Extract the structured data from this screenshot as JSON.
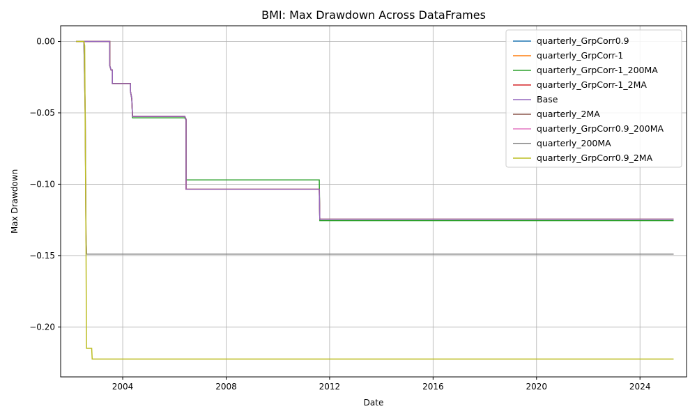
{
  "chart_data": {
    "type": "line",
    "title": "BMI: Max Drawdown Across DataFrames",
    "xlabel": "Date",
    "ylabel": "Max Drawdown",
    "x_ticks": [
      "2004",
      "2008",
      "2012",
      "2016",
      "2020",
      "2024"
    ],
    "y_ticks": [
      "0.00",
      "−0.05",
      "−0.10",
      "−0.15",
      "−0.20"
    ],
    "y_tick_values": [
      0,
      -0.05,
      -0.1,
      -0.15,
      -0.2
    ],
    "x_tick_values": [
      2004,
      2008,
      2012,
      2016,
      2020,
      2024
    ],
    "xlim": [
      2001.6,
      2025.8
    ],
    "ylim": [
      -0.235,
      0.011
    ],
    "grid": true,
    "legend_position": "top-right",
    "series": [
      {
        "name": "quarterly_GrpCorr0.9",
        "color": "#1f77b4",
        "points": [
          [
            2002.2,
            0
          ],
          [
            2003.5,
            0
          ],
          [
            2003.5,
            -0.017
          ],
          [
            2003.55,
            -0.02
          ],
          [
            2003.6,
            -0.02
          ],
          [
            2003.6,
            -0.0295
          ],
          [
            2004.3,
            -0.0295
          ],
          [
            2004.3,
            -0.035
          ],
          [
            2004.35,
            -0.04
          ],
          [
            2004.38,
            -0.0525
          ],
          [
            2006.4,
            -0.0525
          ],
          [
            2006.45,
            -0.0545
          ],
          [
            2006.45,
            -0.1035
          ],
          [
            2011.6,
            -0.1035
          ],
          [
            2011.62,
            -0.1245
          ],
          [
            2025.3,
            -0.1245
          ]
        ]
      },
      {
        "name": "quarterly_GrpCorr-1",
        "color": "#ff7f0e",
        "points": [
          [
            2002.2,
            0
          ],
          [
            2003.5,
            0
          ],
          [
            2003.5,
            -0.017
          ],
          [
            2003.55,
            -0.02
          ],
          [
            2003.6,
            -0.02
          ],
          [
            2003.6,
            -0.0295
          ],
          [
            2004.3,
            -0.0295
          ],
          [
            2004.3,
            -0.035
          ],
          [
            2004.35,
            -0.04
          ],
          [
            2004.38,
            -0.0525
          ],
          [
            2006.4,
            -0.0525
          ],
          [
            2006.45,
            -0.0545
          ],
          [
            2006.45,
            -0.1035
          ],
          [
            2011.6,
            -0.1035
          ],
          [
            2011.62,
            -0.1245
          ],
          [
            2025.3,
            -0.1245
          ]
        ]
      },
      {
        "name": "quarterly_GrpCorr-1_200MA",
        "color": "#2ca02c",
        "points": [
          [
            2002.2,
            0
          ],
          [
            2003.5,
            0
          ],
          [
            2003.5,
            -0.017
          ],
          [
            2003.55,
            -0.02
          ],
          [
            2003.6,
            -0.02
          ],
          [
            2003.6,
            -0.0295
          ],
          [
            2004.3,
            -0.0295
          ],
          [
            2004.3,
            -0.035
          ],
          [
            2004.35,
            -0.04
          ],
          [
            2004.38,
            -0.0535
          ],
          [
            2006.4,
            -0.0535
          ],
          [
            2006.45,
            -0.055
          ],
          [
            2006.45,
            -0.097
          ],
          [
            2011.6,
            -0.097
          ],
          [
            2011.62,
            -0.1255
          ],
          [
            2025.3,
            -0.1255
          ]
        ]
      },
      {
        "name": "quarterly_GrpCorr-1_2MA",
        "color": "#d62728",
        "points": [
          [
            2002.2,
            0
          ],
          [
            2003.5,
            0
          ],
          [
            2003.5,
            -0.017
          ],
          [
            2003.55,
            -0.02
          ],
          [
            2003.6,
            -0.02
          ],
          [
            2003.6,
            -0.0295
          ],
          [
            2004.3,
            -0.0295
          ],
          [
            2004.3,
            -0.035
          ],
          [
            2004.35,
            -0.04
          ],
          [
            2004.38,
            -0.0525
          ],
          [
            2006.4,
            -0.0525
          ],
          [
            2006.45,
            -0.0545
          ],
          [
            2006.45,
            -0.1035
          ],
          [
            2011.6,
            -0.1035
          ],
          [
            2011.62,
            -0.1245
          ],
          [
            2025.3,
            -0.1245
          ]
        ]
      },
      {
        "name": "Base",
        "color": "#9467bd",
        "points": [
          [
            2002.2,
            0
          ],
          [
            2003.5,
            0
          ],
          [
            2003.5,
            -0.017
          ],
          [
            2003.55,
            -0.02
          ],
          [
            2003.6,
            -0.02
          ],
          [
            2003.6,
            -0.0295
          ],
          [
            2004.3,
            -0.0295
          ],
          [
            2004.3,
            -0.035
          ],
          [
            2004.35,
            -0.04
          ],
          [
            2004.38,
            -0.0525
          ],
          [
            2006.4,
            -0.0525
          ],
          [
            2006.45,
            -0.0545
          ],
          [
            2006.45,
            -0.1035
          ],
          [
            2011.6,
            -0.1035
          ],
          [
            2011.62,
            -0.1245
          ],
          [
            2025.3,
            -0.1245
          ]
        ]
      },
      {
        "name": "quarterly_2MA",
        "color": "#8c564b",
        "points": [
          [
            2002.2,
            0
          ],
          [
            2002.5,
            0
          ],
          [
            2002.55,
            -0.05
          ],
          [
            2002.58,
            -0.135
          ],
          [
            2002.6,
            -0.149
          ],
          [
            2025.3,
            -0.149
          ]
        ]
      },
      {
        "name": "quarterly_GrpCorr0.9_200MA",
        "color": "#e377c2",
        "points": [
          [
            2002.2,
            0
          ],
          [
            2002.5,
            0
          ],
          [
            2002.55,
            -0.05
          ],
          [
            2002.58,
            -0.135
          ],
          [
            2002.6,
            -0.149
          ],
          [
            2025.3,
            -0.149
          ]
        ]
      },
      {
        "name": "quarterly_200MA",
        "color": "#7f7f7f",
        "points": [
          [
            2002.2,
            0
          ],
          [
            2002.5,
            0
          ],
          [
            2002.55,
            -0.05
          ],
          [
            2002.58,
            -0.135
          ],
          [
            2002.6,
            -0.149
          ],
          [
            2025.3,
            -0.149
          ]
        ]
      },
      {
        "name": "quarterly_GrpCorr0.9_2MA",
        "color": "#bcbd22",
        "points": [
          [
            2002.2,
            0
          ],
          [
            2002.5,
            0
          ],
          [
            2002.53,
            -0.003
          ],
          [
            2002.55,
            -0.06
          ],
          [
            2002.58,
            -0.14
          ],
          [
            2002.6,
            -0.215
          ],
          [
            2002.8,
            -0.215
          ],
          [
            2002.82,
            -0.2225
          ],
          [
            2025.3,
            -0.2225
          ]
        ]
      }
    ]
  }
}
